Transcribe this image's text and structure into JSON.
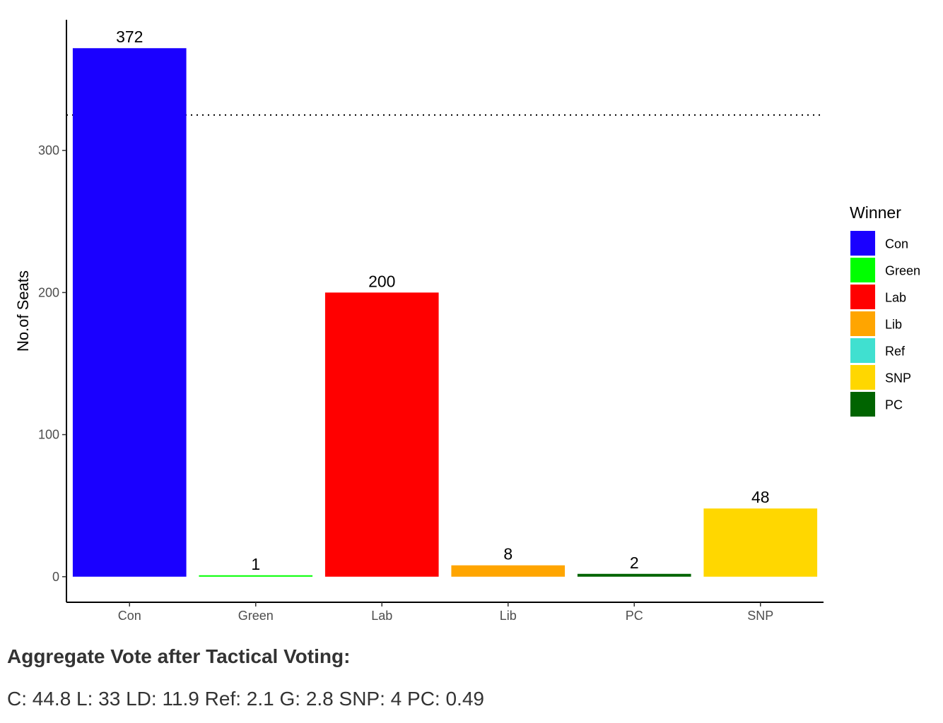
{
  "chart_data": {
    "type": "bar",
    "categories": [
      "Con",
      "Green",
      "Lab",
      "Lib",
      "PC",
      "SNP"
    ],
    "values": [
      372,
      1,
      200,
      8,
      2,
      48
    ],
    "colors": [
      "#1a00ff",
      "#00ff00",
      "#ff0000",
      "#ffa500",
      "#006400",
      "#ffd700"
    ],
    "data_labels": [
      "372",
      "1",
      "200",
      "8",
      "2",
      "48"
    ],
    "ylabel": "No.of Seats",
    "xlabel": "",
    "ylim": [
      -18,
      392
    ],
    "yticks": [
      0,
      100,
      200,
      300
    ],
    "reference_line": {
      "y": 325,
      "style": "dotted"
    },
    "grid": false,
    "legend": {
      "title": "Winner",
      "placement": "right",
      "items": [
        {
          "label": "Con",
          "color": "#1a00ff"
        },
        {
          "label": "Green",
          "color": "#00ff00"
        },
        {
          "label": "Lab",
          "color": "#ff0000"
        },
        {
          "label": "Lib",
          "color": "#ffa500"
        },
        {
          "label": "Ref",
          "color": "#40e0d0"
        },
        {
          "label": "SNP",
          "color": "#ffd700"
        },
        {
          "label": "PC",
          "color": "#006400"
        }
      ]
    }
  },
  "caption": {
    "title": "Aggregate Vote after Tactical Voting:",
    "text": "C: 44.8 L: 33 LD: 11.9 Ref: 2.1 G: 2.8 SNP: 4 PC: 0.49"
  }
}
